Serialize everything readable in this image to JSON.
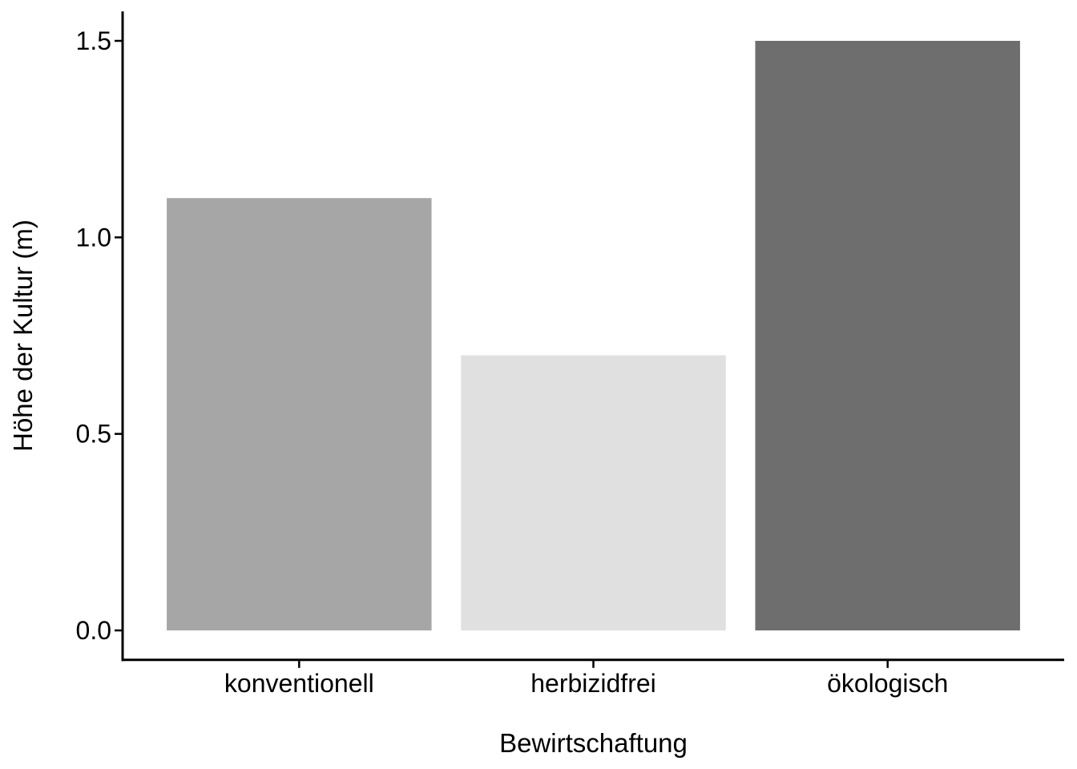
{
  "chart_data": {
    "type": "bar",
    "title": "",
    "xlabel": "Bewirtschaftung",
    "ylabel": "Höhe der Kultur (m)",
    "categories": [
      "konventionell",
      "herbizidfrei",
      "ökologisch"
    ],
    "values": [
      1.1,
      0.7,
      1.5
    ],
    "colors": [
      "#a6a6a6",
      "#e0e0e0",
      "#6e6e6e"
    ],
    "ylim": [
      -0.075,
      1.575
    ],
    "yticks": [
      0.0,
      0.5,
      1.0,
      1.5
    ],
    "ytick_labels": [
      "0.0",
      "0.5",
      "1.0",
      "1.5"
    ],
    "grid": false,
    "legend": "none"
  }
}
